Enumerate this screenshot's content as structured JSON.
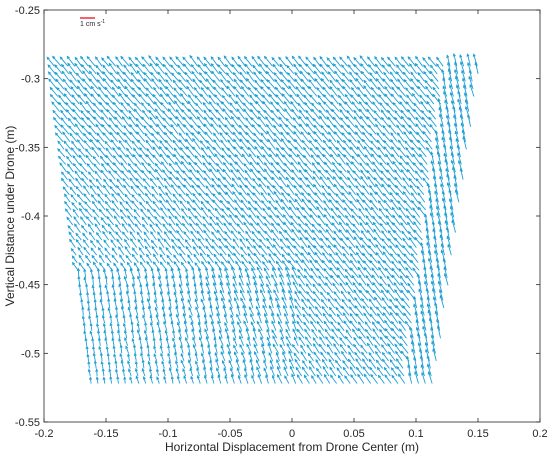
{
  "chart_data": {
    "type": "quiver",
    "xlabel": "Horizontal Displacement from Drone Center (m)",
    "ylabel": "Vertical Distance under Drone (m)",
    "xlim": [
      -0.2,
      0.2
    ],
    "ylim": [
      -0.55,
      -0.25
    ],
    "xticks": [
      -0.2,
      -0.15,
      -0.1,
      -0.05,
      0,
      0.05,
      0.1,
      0.15,
      0.2
    ],
    "xtick_labels": [
      "-0.2",
      "-0.15",
      "-0.1",
      "-0.05",
      "0",
      "0.05",
      "0.1",
      "0.15",
      "0.2"
    ],
    "yticks": [
      -0.55,
      -0.5,
      -0.45,
      -0.4,
      -0.35,
      -0.3,
      -0.25
    ],
    "ytick_labels": [
      "-0.55",
      "-0.5",
      "-0.45",
      "-0.4",
      "-0.35",
      "-0.3",
      "-0.25"
    ],
    "grid": false,
    "series": [
      {
        "arrow_color": "#1e9fd4",
        "field_extent": {
          "x_top": [
            -0.192,
            0.152
          ],
          "x_bottom": [
            -0.162,
            0.115
          ],
          "y": [
            -0.522,
            -0.288
          ]
        },
        "grid_spacing": 0.0055,
        "flow": "predominantly up-left in the upper region (~1.0 cm/s), weaker and more vertical in the lower-left region"
      }
    ],
    "scale_bar": {
      "label": "1 cm s",
      "superscript": "-1",
      "color": "#e8262a",
      "magnitude_cm_per_s": 1
    }
  }
}
